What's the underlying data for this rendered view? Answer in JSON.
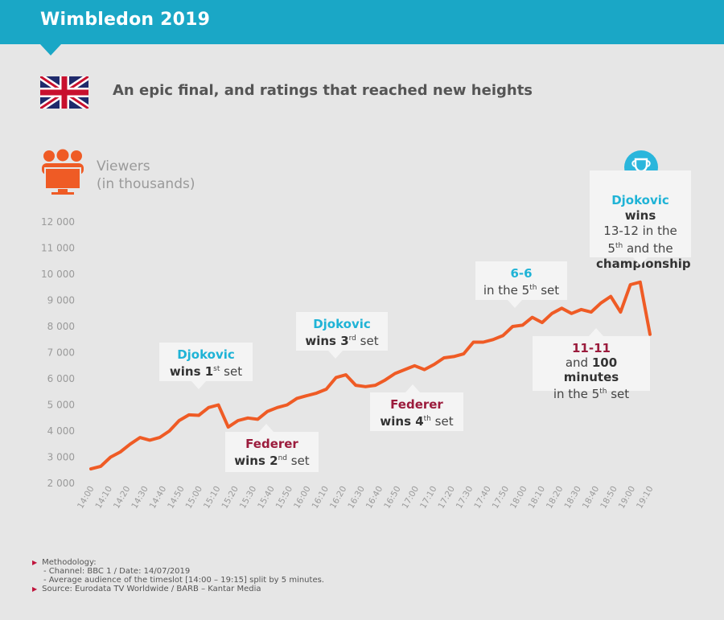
{
  "header": {
    "title": "Wimbledon 2019",
    "subtitle": "An epic final, and ratings that reached new heights",
    "unit_line1": "Viewers",
    "unit_line2": "(in thousands)"
  },
  "callouts": {
    "c1": {
      "l1": "Djokovic",
      "l2": "wins 1",
      "sup": "st",
      "l3": " set"
    },
    "c2": {
      "l1": "Federer",
      "l2": "wins 2",
      "sup": "nd",
      "l3": " set"
    },
    "c3": {
      "l1": "Djokovic",
      "l2": "wins 3",
      "sup": "rd",
      "l3": " set"
    },
    "c4": {
      "l1": "Federer",
      "l2": "wins 4",
      "sup": "th",
      "l3": " set"
    },
    "c5": {
      "l1": "6-6",
      "l2": "in the 5",
      "sup": "th",
      "l3": " set"
    },
    "c6": {
      "l1": "11-11",
      "l2a": "and ",
      "l2b": "100 minutes",
      "l3": "in the 5",
      "sup": "th",
      "l3b": " set"
    },
    "c7": {
      "l1a": "Djokovic",
      "l1b": " wins",
      "l2": "13-12 in the",
      "l3": "5",
      "sup": "th",
      "l3b": " and the",
      "l4": "championship"
    }
  },
  "notes": {
    "m_title": "Methodology:",
    "m1": "- Channel: BBC 1 / Date: 14/07/2019",
    "m2": "- Average audience of the timeslot [14:00 – 19:15] split by 5 minutes.",
    "source": "Source: Eurodata TV Worldwide / BARB – Kantar Media"
  },
  "colors": {
    "banner": "#1aa7c6",
    "line": "#ef5b25",
    "blue_text": "#1fb3d6",
    "red_text": "#9b1b3c"
  },
  "chart_data": {
    "type": "line",
    "x_ticks": [
      "14:00",
      "14:10",
      "14:20",
      "14:30",
      "14:40",
      "14:50",
      "15:00",
      "15:10",
      "15:20",
      "15:30",
      "15:40",
      "15:50",
      "16:00",
      "16:10",
      "16:20",
      "16:30",
      "16:40",
      "16:50",
      "17:00",
      "17:10",
      "17:20",
      "17:30",
      "17:40",
      "17:50",
      "18:00",
      "18:10",
      "18:20",
      "18:30",
      "18:40",
      "18:50",
      "19:00",
      "19:10"
    ],
    "y_ticks": [
      "12 000",
      "11 000",
      "10 000",
      "9 000",
      "8 000",
      "7 000",
      "6 000",
      "5 000",
      "4 000",
      "3 000",
      "2 000"
    ],
    "ylim": [
      2000,
      12000
    ],
    "grid": false,
    "series": [
      {
        "values": [
          2550,
          2650,
          3000,
          3200,
          3500,
          3750,
          3650,
          3750,
          4000,
          4400,
          4620,
          4600,
          4900,
          5000,
          4150,
          4400,
          4500,
          4450,
          4750,
          4900,
          5000,
          5250,
          5350,
          5450,
          5600,
          6050,
          6150,
          5750,
          5700,
          5750,
          5950,
          6200,
          6350,
          6500,
          6350,
          6550,
          6800,
          6850,
          6950,
          7400,
          7400,
          7500,
          7650,
          8000,
          8050,
          8350,
          8150,
          8500,
          8700,
          8500,
          8650,
          8550,
          8900,
          9150,
          8550,
          9600,
          9700,
          7700
        ]
      }
    ]
  }
}
